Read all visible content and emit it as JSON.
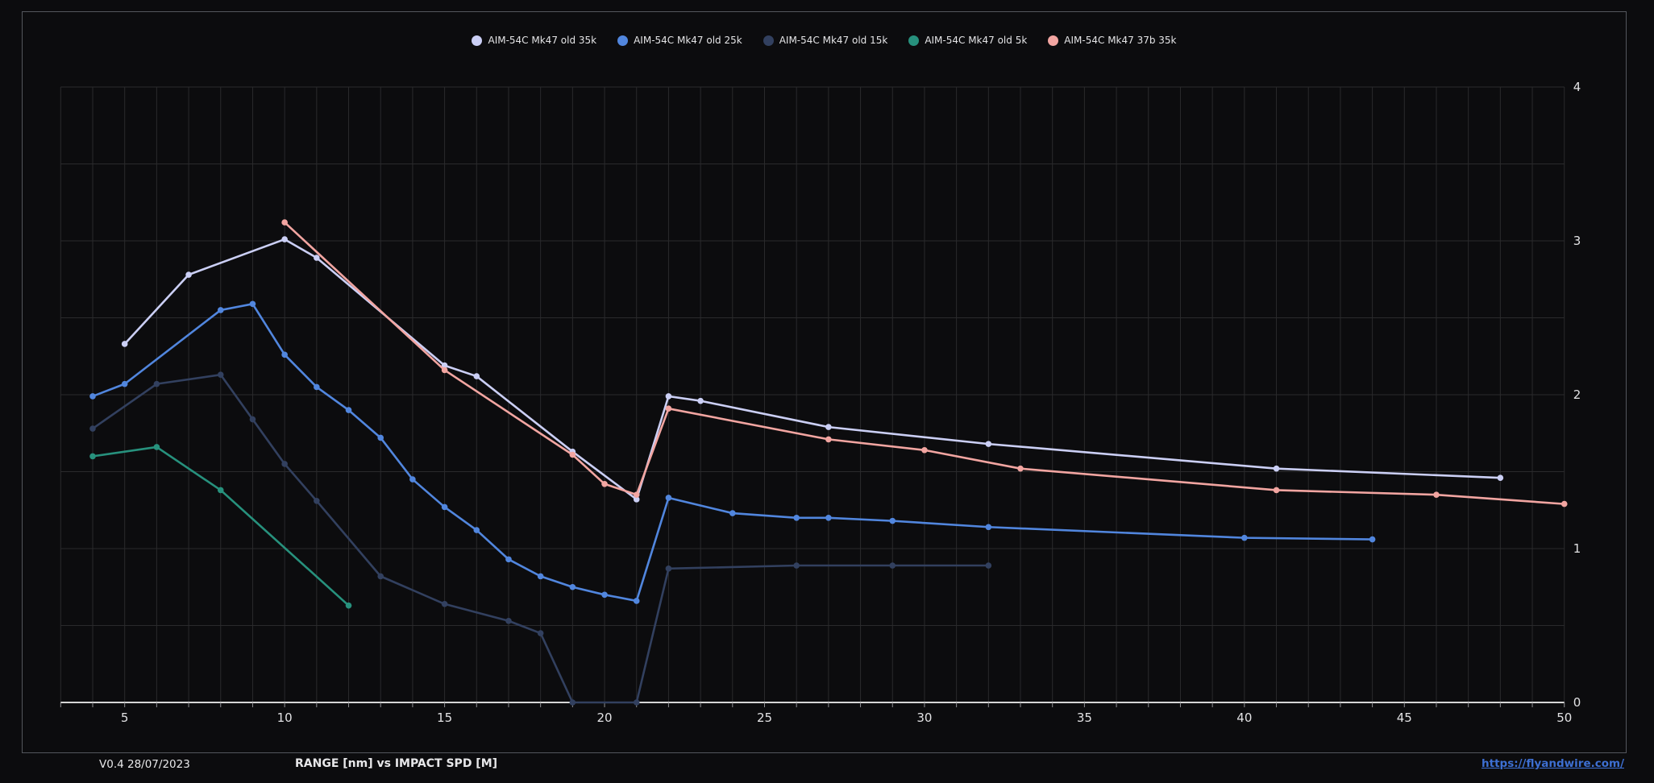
{
  "footer": {
    "version": "V0.4 28/07/2023",
    "title": "RANGE [nm] vs IMPACT SPD [M]",
    "link": "https://flyandwire.com/"
  },
  "colors": {
    "background": "#0c0c0e",
    "frame_border": "#54575d",
    "grid": "#2a2a2c",
    "axis_line": "#d6d6d6",
    "tick": "#8f8f92",
    "tick_label": "#e2e2e4",
    "link": "#3d6fd2"
  },
  "chart_data": {
    "type": "line",
    "title": "RANGE [nm] vs IMPACT SPD [M]",
    "xlabel": "RANGE [nm]",
    "ylabel": "IMPACT SPD [M]",
    "xlim": [
      3,
      50
    ],
    "ylim": [
      0,
      4
    ],
    "x_ticks": [
      5,
      10,
      15,
      20,
      25,
      30,
      35,
      40,
      45,
      50
    ],
    "y_ticks": [
      0,
      1,
      2,
      3,
      4
    ],
    "x_minor_step": 1,
    "y_minor_step": 0.5,
    "grid": true,
    "legend_position": "top-center",
    "y_axis_side": "right",
    "series": [
      {
        "name": "AIM-54C Mk47 old 35k",
        "color": "#cbcff5",
        "points": [
          [
            5,
            2.33
          ],
          [
            7,
            2.78
          ],
          [
            10,
            3.01
          ],
          [
            11,
            2.89
          ],
          [
            15,
            2.19
          ],
          [
            16,
            2.12
          ],
          [
            19,
            1.63
          ],
          [
            21,
            1.32
          ],
          [
            22,
            1.99
          ],
          [
            23,
            1.96
          ],
          [
            27,
            1.79
          ],
          [
            32,
            1.68
          ],
          [
            41,
            1.52
          ],
          [
            48,
            1.46
          ]
        ]
      },
      {
        "name": "AIM-54C Mk47 old 25k",
        "color": "#5186de",
        "points": [
          [
            4,
            1.99
          ],
          [
            5,
            2.07
          ],
          [
            8,
            2.55
          ],
          [
            9,
            2.59
          ],
          [
            10,
            2.26
          ],
          [
            11,
            2.05
          ],
          [
            12,
            1.9
          ],
          [
            13,
            1.72
          ],
          [
            14,
            1.45
          ],
          [
            15,
            1.27
          ],
          [
            16,
            1.12
          ],
          [
            17,
            0.93
          ],
          [
            18,
            0.82
          ],
          [
            19,
            0.75
          ],
          [
            20,
            0.7
          ],
          [
            21,
            0.66
          ],
          [
            22,
            1.33
          ],
          [
            24,
            1.23
          ],
          [
            26,
            1.2
          ],
          [
            27,
            1.2
          ],
          [
            29,
            1.18
          ],
          [
            32,
            1.14
          ],
          [
            40,
            1.07
          ],
          [
            44,
            1.06
          ]
        ]
      },
      {
        "name": "AIM-54C Mk47 old 15k",
        "color": "#32405f",
        "points": [
          [
            4,
            1.78
          ],
          [
            6,
            2.07
          ],
          [
            8,
            2.13
          ],
          [
            9,
            1.84
          ],
          [
            10,
            1.55
          ],
          [
            11,
            1.31
          ],
          [
            13,
            0.82
          ],
          [
            15,
            0.64
          ],
          [
            17,
            0.53
          ],
          [
            18,
            0.45
          ],
          [
            19,
            0
          ],
          [
            21,
            0
          ],
          [
            22,
            0.87
          ],
          [
            26,
            0.89
          ],
          [
            29,
            0.89
          ],
          [
            32,
            0.89
          ]
        ]
      },
      {
        "name": "AIM-54C Mk47 old 5k",
        "color": "#27917d",
        "points": [
          [
            4,
            1.6
          ],
          [
            6,
            1.66
          ],
          [
            8,
            1.38
          ],
          [
            12,
            0.63
          ]
        ]
      },
      {
        "name": "AIM-54C Mk47 37b 35k",
        "color": "#f2a5a1",
        "points": [
          [
            10,
            3.12
          ],
          [
            15,
            2.16
          ],
          [
            19,
            1.61
          ],
          [
            20,
            1.42
          ],
          [
            21,
            1.35
          ],
          [
            22,
            1.91
          ],
          [
            27,
            1.71
          ],
          [
            30,
            1.64
          ],
          [
            33,
            1.52
          ],
          [
            41,
            1.38
          ],
          [
            46,
            1.35
          ],
          [
            50,
            1.29
          ]
        ]
      }
    ]
  }
}
